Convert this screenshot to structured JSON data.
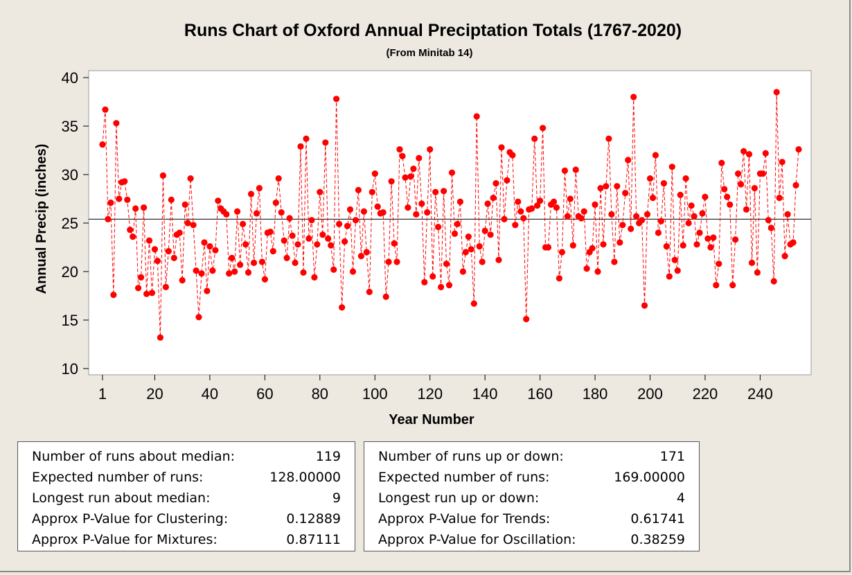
{
  "chart_data": {
    "type": "scatter",
    "title": "Runs Chart of Oxford Annual Preciptation Totals (1767-2020)",
    "subtitle": "(From Minitab 14)",
    "xlabel": "Year Number",
    "ylabel": "Annual Precip (inches)",
    "xlim": [
      1,
      254
    ],
    "ylim": [
      10,
      40
    ],
    "x_ticks": [
      1,
      20,
      40,
      60,
      80,
      100,
      120,
      140,
      160,
      180,
      200,
      220,
      240
    ],
    "y_ticks": [
      10,
      15,
      20,
      25,
      30,
      35,
      40
    ],
    "median": 25.4,
    "grid": false,
    "series": [
      {
        "style": "red dashed line with red circle markers",
        "x_start": 1,
        "x_step": 1,
        "values": [
          33.1,
          36.7,
          25.4,
          27.1,
          17.6,
          35.3,
          27.5,
          29.2,
          29.3,
          27.4,
          24.3,
          23.6,
          26.5,
          18.3,
          19.4,
          26.6,
          17.7,
          23.2,
          17.8,
          22.3,
          21.1,
          13.2,
          29.9,
          18.4,
          22.1,
          27.4,
          21.4,
          23.8,
          24,
          19.1,
          26.9,
          25,
          29.6,
          24.8,
          20.1,
          15.3,
          19.8,
          23,
          18,
          22.6,
          20.1,
          22.2,
          27.3,
          26.5,
          26.2,
          25.9,
          19.8,
          21.4,
          20,
          26.2,
          20.7,
          24.9,
          22.8,
          19.9,
          28,
          20.9,
          26,
          28.6,
          21,
          19.2,
          24,
          24.1,
          22.1,
          27.1,
          29.6,
          26.1,
          23.2,
          21.4,
          25.5,
          23.7,
          20.9,
          22.8,
          32.9,
          19.9,
          33.7,
          23.4,
          25.3,
          19.4,
          22.8,
          28.2,
          23.8,
          33.3,
          23.4,
          22.7,
          20.2,
          37.8,
          24.9,
          16.3,
          23.1,
          24.7,
          26.4,
          20,
          25.3,
          28.4,
          21.6,
          26.2,
          22,
          17.9,
          28.2,
          30.1,
          26.7,
          26,
          26.1,
          17.4,
          21,
          29.3,
          22.9,
          21,
          32.6,
          31.9,
          29.7,
          26.6,
          29.8,
          30.6,
          25.9,
          31.7,
          27,
          18.9,
          26.1,
          32.6,
          19.5,
          28.2,
          24.6,
          18.4,
          28.3,
          20.8,
          18.6,
          30.2,
          23.9,
          24.9,
          27.2,
          20,
          22,
          23.6,
          22.3,
          16.7,
          36,
          22.6,
          21,
          24.2,
          27,
          23.8,
          27.6,
          29.1,
          21.2,
          32.8,
          25.4,
          29.4,
          32.3,
          32,
          24.8,
          27.2,
          26.2,
          25.5,
          15.1,
          26.4,
          26.5,
          33.7,
          26.8,
          27.3,
          34.8,
          22.5,
          22.5,
          26.9,
          27.2,
          26.6,
          19.3,
          22,
          30.4,
          25.7,
          27.5,
          22.7,
          30.5,
          25.7,
          25.5,
          26.2,
          20.3,
          22,
          22.4,
          26.9,
          20,
          28.6,
          22.8,
          28.8,
          33.7,
          25.9,
          21,
          28.8,
          23,
          24.8,
          28.1,
          31.5,
          24.4,
          38,
          25.7,
          25,
          25.3,
          16.5,
          25.9,
          29.6,
          27.6,
          32,
          24,
          25.2,
          29.1,
          22.6,
          19.5,
          30.8,
          21.2,
          20.1,
          27.9,
          22.7,
          29.6,
          25,
          26.8,
          25.7,
          22.8,
          24,
          26,
          27.7,
          23.4,
          22.5,
          23.5,
          18.6,
          20.8,
          31.2,
          28.5,
          27.7,
          26.9,
          18.6,
          23.3,
          30.1,
          29,
          32.4,
          26.4,
          32.1,
          20.9,
          28.6,
          19.9,
          30.1,
          30.1,
          32.2,
          25.3,
          24.5,
          19,
          38.5,
          27.6,
          31.3,
          21.6,
          25.9,
          22.8,
          23,
          28.9,
          32.6
        ]
      }
    ]
  },
  "stats_about_median": [
    {
      "label": "Number of runs about median:",
      "value": "119"
    },
    {
      "label": "Expected number of runs:",
      "value": "128.00000"
    },
    {
      "label": "Longest run about median:",
      "value": "9"
    },
    {
      "label": "Approx P-Value for Clustering:",
      "value": "0.12889"
    },
    {
      "label": "Approx P-Value for Mixtures:",
      "value": "0.87111"
    }
  ],
  "stats_up_down": [
    {
      "label": "Number of runs up or down:",
      "value": "171"
    },
    {
      "label": "Expected number of runs:",
      "value": "169.00000"
    },
    {
      "label": "Longest run up or down:",
      "value": "4"
    },
    {
      "label": "Approx P-Value for Trends:",
      "value": "0.61741"
    },
    {
      "label": "Approx P-Value for Oscillation:",
      "value": "0.38259"
    }
  ],
  "colors": {
    "series": "#ff0000",
    "median_line": "#000000",
    "plot_background": "#ffffff",
    "window_background": "#ede9e1"
  }
}
